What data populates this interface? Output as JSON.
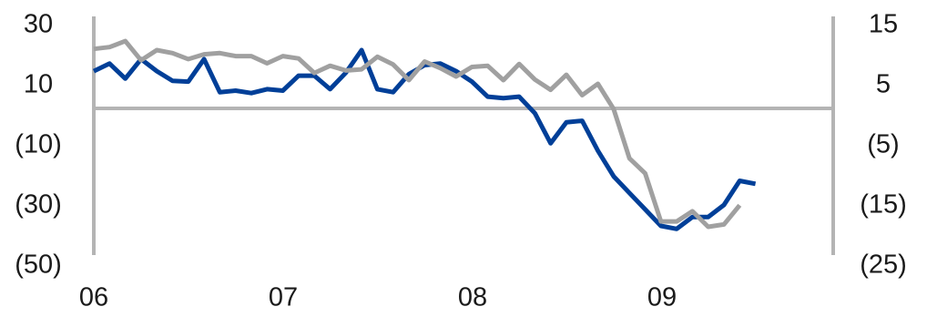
{
  "chart_data": {
    "type": "line",
    "title": "",
    "xlabel": "",
    "ylabel": "",
    "grid": false,
    "legend": "none",
    "x_tick_labels": [
      "06",
      "07",
      "08",
      "09"
    ],
    "y_left": {
      "lim": [
        -50,
        30
      ],
      "ticks": [
        30,
        10,
        -10,
        -30,
        -50
      ],
      "tick_labels": [
        "30",
        "10",
        "(10)",
        "(30)",
        "(50)"
      ]
    },
    "y_right": {
      "lim": [
        -25,
        15
      ],
      "ticks": [
        15,
        5,
        -5,
        -15,
        -25
      ],
      "tick_labels": [
        "15",
        "5",
        "(5)",
        "(15)",
        "(25)"
      ]
    },
    "zero_line": true,
    "colors": {
      "series_left": "#003f98",
      "series_right": "#a0a0a0",
      "axis": "#b4b4b4"
    },
    "series": [
      {
        "axis": "left",
        "values": [
          13.0,
          15.5,
          10.5,
          17.0,
          13.0,
          9.8,
          9.5,
          17.0,
          6.0,
          6.5,
          5.7,
          7.0,
          6.5,
          11.5,
          11.5,
          7.0,
          12.5,
          20.0,
          7.0,
          6.0,
          12.0,
          15.0,
          15.5,
          13.0,
          9.5,
          4.5,
          4.0,
          4.5,
          -1.0,
          -11.0,
          -4.0,
          -3.5,
          -13.5,
          -22.0,
          -27.5,
          -33.0,
          -38.5,
          -39.5,
          -35.5,
          -35.5,
          -31.5,
          -23.5,
          -24.5
        ]
      },
      {
        "axis": "right",
        "values": [
          10.2,
          10.5,
          11.5,
          8.3,
          10.0,
          9.5,
          8.5,
          9.3,
          9.5,
          9.0,
          9.0,
          7.8,
          9.0,
          8.6,
          6.2,
          7.4,
          6.6,
          6.8,
          8.9,
          7.6,
          5.0,
          8.1,
          7.0,
          5.6,
          7.2,
          7.4,
          5.0,
          7.7,
          5.1,
          3.4,
          5.9,
          2.5,
          4.4,
          0.2,
          -8.0,
          -10.5,
          -18.5,
          -18.5,
          -16.8,
          -19.4,
          -19.0,
          -15.8
        ]
      }
    ]
  }
}
